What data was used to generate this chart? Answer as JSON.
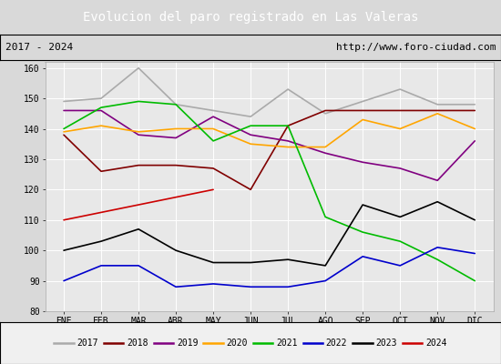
{
  "title": "Evolucion del paro registrado en Las Valeras",
  "subtitle_left": "2017 - 2024",
  "subtitle_right": "http://www.foro-ciudad.com",
  "months": [
    "ENE",
    "FEB",
    "MAR",
    "ABR",
    "MAY",
    "JUN",
    "JUL",
    "AGO",
    "SEP",
    "OCT",
    "NOV",
    "DIC"
  ],
  "ylim": [
    80,
    162
  ],
  "yticks": [
    80,
    90,
    100,
    110,
    120,
    130,
    140,
    150,
    160
  ],
  "series": {
    "2017": {
      "color": "#aaaaaa",
      "data": [
        149,
        150,
        160,
        148,
        146,
        144,
        153,
        145,
        149,
        153,
        148,
        148
      ]
    },
    "2018": {
      "color": "#800000",
      "data": [
        138,
        126,
        128,
        128,
        127,
        120,
        141,
        146,
        146,
        146,
        146,
        146
      ]
    },
    "2019": {
      "color": "#800080",
      "data": [
        146,
        146,
        138,
        137,
        144,
        138,
        136,
        132,
        129,
        127,
        123,
        136
      ]
    },
    "2020": {
      "color": "#ffa500",
      "data": [
        139,
        141,
        139,
        140,
        140,
        135,
        134,
        134,
        143,
        140,
        145,
        140
      ]
    },
    "2021": {
      "color": "#00bb00",
      "data": [
        140,
        147,
        149,
        148,
        136,
        141,
        141,
        111,
        106,
        103,
        97,
        90
      ]
    },
    "2022": {
      "color": "#0000cc",
      "data": [
        90,
        95,
        95,
        88,
        89,
        88,
        88,
        90,
        98,
        95,
        101,
        99
      ]
    },
    "2023": {
      "color": "#000000",
      "data": [
        100,
        103,
        107,
        100,
        96,
        96,
        97,
        95,
        115,
        111,
        116,
        110
      ]
    },
    "2024": {
      "color": "#cc0000",
      "data": [
        110,
        null,
        null,
        null,
        120,
        null,
        null,
        null,
        null,
        null,
        null,
        null
      ]
    }
  },
  "title_bg": "#4472c4",
  "title_color": "#ffffff",
  "subtitle_bg": "#d9d9d9",
  "plot_bg": "#e8e8e8",
  "legend_bg": "#f0f0f0",
  "fig_bg": "#d9d9d9"
}
